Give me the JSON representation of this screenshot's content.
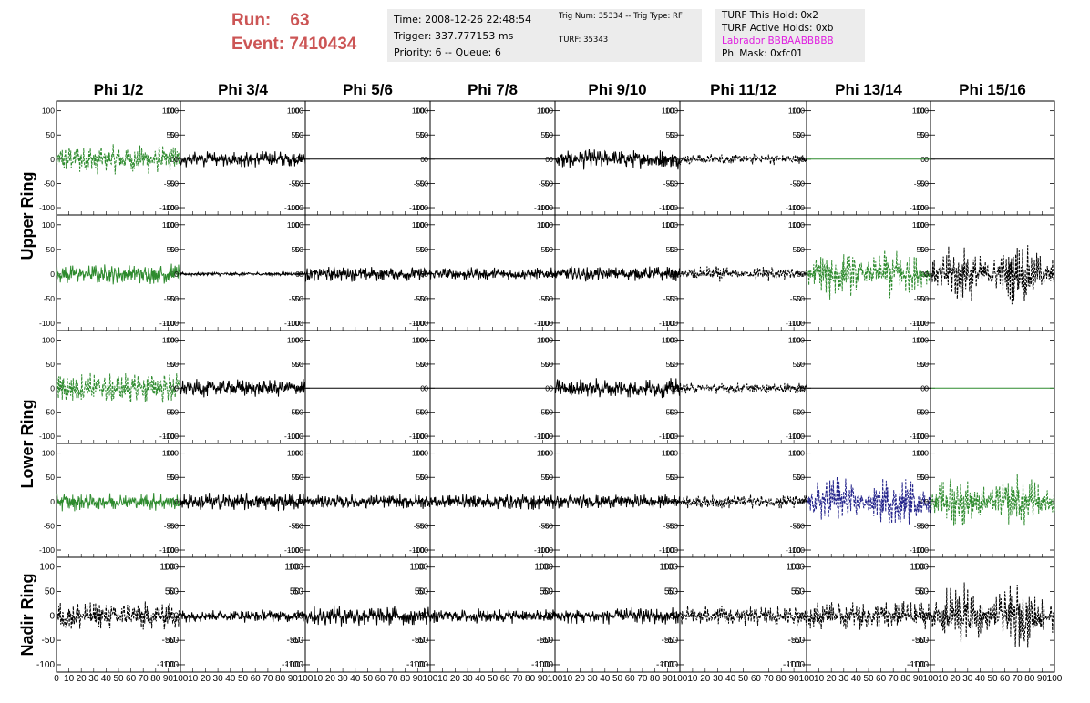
{
  "header": {
    "run_label": "Run:",
    "run_value": "63",
    "event_label": "Event:",
    "event_value": "7410434",
    "time": "Time: 2008-12-26 22:48:54",
    "trigger": "Trigger: 337.777153 ms",
    "priority": "Priority: 6 -- Queue: 6",
    "trig_num": "Trig Num: 35334 -- Trig Type: RF",
    "turf": "TURF: 35343",
    "turf_this_hold": "TURF This Hold: 0x2",
    "turf_active_holds": "TURF Active Holds: 0xb",
    "labrador": "Labrador BBBAABBBBB",
    "phi_mask": "Phi Mask: 0xfc01"
  },
  "chart_data": {
    "type": "line",
    "columns": [
      "Phi 1/2",
      "Phi 3/4",
      "Phi 5/6",
      "Phi 7/8",
      "Phi 9/10",
      "Phi 11/12",
      "Phi 13/14",
      "Phi 15/16"
    ],
    "ring_labels": [
      {
        "text": "Upper Ring",
        "rows": [
          0,
          1
        ]
      },
      {
        "text": "Lower Ring",
        "rows": [
          2,
          3
        ]
      },
      {
        "text": "Nadir Ring",
        "rows": [
          4,
          4
        ]
      }
    ],
    "xlim": [
      0,
      100
    ],
    "ylim": [
      -115,
      120
    ],
    "yticks": [
      -100,
      -50,
      0,
      50,
      100
    ],
    "xticks": [
      0,
      10,
      20,
      30,
      40,
      50,
      60,
      70,
      80,
      90,
      100
    ],
    "colors": {
      "black": "#000000",
      "green": "#2e8b2e",
      "blue": "#22228a"
    },
    "rows": [
      [
        {
          "color": "green",
          "amp": 32,
          "dash": true,
          "env": "flat"
        },
        {
          "color": "black",
          "amp": 18,
          "dash": false,
          "env": "flat"
        },
        {
          "color": "black",
          "amp": 0,
          "dash": false,
          "env": "flat"
        },
        {
          "color": "black",
          "amp": 0,
          "dash": false,
          "env": "flat"
        },
        {
          "color": "black",
          "amp": 22,
          "dash": false,
          "env": "flat"
        },
        {
          "color": "black",
          "amp": 12,
          "dash": true,
          "env": "flat"
        },
        {
          "color": "green",
          "amp": 0,
          "dash": false,
          "env": "flat"
        },
        {
          "color": "black",
          "amp": 0,
          "dash": false,
          "env": "flat"
        }
      ],
      [
        {
          "color": "green",
          "amp": 22,
          "dash": false,
          "env": "flat"
        },
        {
          "color": "black",
          "amp": 4,
          "dash": false,
          "env": "flat"
        },
        {
          "color": "black",
          "amp": 16,
          "dash": false,
          "env": "flat"
        },
        {
          "color": "black",
          "amp": 14,
          "dash": false,
          "env": "flat"
        },
        {
          "color": "black",
          "amp": 16,
          "dash": false,
          "env": "flat"
        },
        {
          "color": "black",
          "amp": 18,
          "dash": true,
          "env": "double"
        },
        {
          "color": "green",
          "amp": 60,
          "dash": true,
          "env": "double"
        },
        {
          "color": "black",
          "amp": 65,
          "dash": true,
          "env": "double"
        }
      ],
      [
        {
          "color": "green",
          "amp": 35,
          "dash": true,
          "env": "flat"
        },
        {
          "color": "black",
          "amp": 20,
          "dash": false,
          "env": "flat"
        },
        {
          "color": "black",
          "amp": 0,
          "dash": false,
          "env": "flat"
        },
        {
          "color": "black",
          "amp": 0,
          "dash": false,
          "env": "flat"
        },
        {
          "color": "black",
          "amp": 22,
          "dash": false,
          "env": "flat"
        },
        {
          "color": "black",
          "amp": 12,
          "dash": true,
          "env": "flat"
        },
        {
          "color": "black",
          "amp": 0,
          "dash": false,
          "env": "flat"
        },
        {
          "color": "green",
          "amp": 0,
          "dash": false,
          "env": "flat"
        }
      ],
      [
        {
          "color": "green",
          "amp": 20,
          "dash": false,
          "env": "flat"
        },
        {
          "color": "black",
          "amp": 20,
          "dash": false,
          "env": "flat"
        },
        {
          "color": "black",
          "amp": 16,
          "dash": false,
          "env": "flat"
        },
        {
          "color": "black",
          "amp": 18,
          "dash": false,
          "env": "flat"
        },
        {
          "color": "black",
          "amp": 16,
          "dash": false,
          "env": "flat"
        },
        {
          "color": "black",
          "amp": 16,
          "dash": true,
          "env": "flat"
        },
        {
          "color": "blue",
          "amp": 60,
          "dash": true,
          "env": "double"
        },
        {
          "color": "green",
          "amp": 62,
          "dash": true,
          "env": "double"
        }
      ],
      [
        {
          "color": "black",
          "amp": 32,
          "dash": true,
          "env": "flat"
        },
        {
          "color": "black",
          "amp": 14,
          "dash": false,
          "env": "flat"
        },
        {
          "color": "black",
          "amp": 22,
          "dash": false,
          "env": "flat"
        },
        {
          "color": "black",
          "amp": 16,
          "dash": false,
          "env": "flat"
        },
        {
          "color": "black",
          "amp": 18,
          "dash": false,
          "env": "flat"
        },
        {
          "color": "black",
          "amp": 22,
          "dash": true,
          "env": "flat"
        },
        {
          "color": "black",
          "amp": 32,
          "dash": true,
          "env": "flat"
        },
        {
          "color": "black",
          "amp": 72,
          "dash": true,
          "env": "double"
        }
      ]
    ]
  }
}
